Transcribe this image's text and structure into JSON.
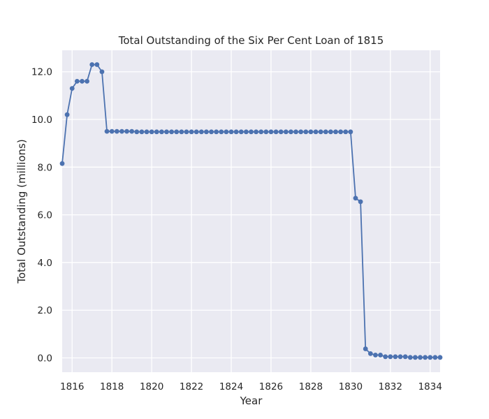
{
  "chart_data": {
    "type": "line",
    "title": "Total Outstanding of the Six Per Cent Loan of 1815",
    "xlabel": "Year",
    "ylabel": "Total Outstanding (millions)",
    "xlim": [
      1815.5,
      1834.5
    ],
    "ylim": [
      -0.6,
      12.9
    ],
    "xticks": [
      "1816",
      "1818",
      "1820",
      "1822",
      "1824",
      "1826",
      "1828",
      "1830",
      "1832",
      "1834"
    ],
    "yticks": [
      "0.0",
      "2.0",
      "4.0",
      "6.0",
      "8.0",
      "10.0",
      "12.0"
    ],
    "grid": true,
    "colors": {
      "line": "#4c72b0",
      "background": "#eaeaf2",
      "grid": "#ffffff"
    },
    "series": [
      {
        "x": [
          1815.5,
          1815.75,
          1816.0,
          1816.25,
          1816.5,
          1816.75,
          1817.0,
          1817.25,
          1817.5,
          1817.75,
          1818.0,
          1818.25,
          1818.5,
          1818.75,
          1819.0,
          1819.25,
          1819.5,
          1819.75,
          1820.0,
          1820.25,
          1820.5,
          1820.75,
          1821.0,
          1821.25,
          1821.5,
          1821.75,
          1822.0,
          1822.25,
          1822.5,
          1822.75,
          1823.0,
          1823.25,
          1823.5,
          1823.75,
          1824.0,
          1824.25,
          1824.5,
          1824.75,
          1825.0,
          1825.25,
          1825.5,
          1825.75,
          1826.0,
          1826.25,
          1826.5,
          1826.75,
          1827.0,
          1827.25,
          1827.5,
          1827.75,
          1828.0,
          1828.25,
          1828.5,
          1828.75,
          1829.0,
          1829.25,
          1829.5,
          1829.75,
          1830.0,
          1830.25,
          1830.5,
          1830.75,
          1831.0,
          1831.25,
          1831.5,
          1831.75,
          1832.0,
          1832.25,
          1832.5,
          1832.75,
          1833.0,
          1833.25,
          1833.5,
          1833.75,
          1834.0,
          1834.25,
          1834.5
        ],
        "values": [
          8.15,
          10.2,
          11.3,
          11.6,
          11.6,
          11.6,
          12.3,
          12.3,
          12.0,
          9.5,
          9.5,
          9.5,
          9.5,
          9.5,
          9.5,
          9.48,
          9.48,
          9.48,
          9.48,
          9.48,
          9.48,
          9.48,
          9.48,
          9.48,
          9.48,
          9.48,
          9.48,
          9.48,
          9.48,
          9.48,
          9.48,
          9.48,
          9.48,
          9.48,
          9.48,
          9.48,
          9.48,
          9.48,
          9.48,
          9.48,
          9.48,
          9.48,
          9.48,
          9.48,
          9.48,
          9.48,
          9.48,
          9.48,
          9.48,
          9.48,
          9.48,
          9.48,
          9.48,
          9.48,
          9.48,
          9.48,
          9.48,
          9.48,
          9.48,
          6.7,
          6.55,
          0.38,
          0.18,
          0.12,
          0.12,
          0.05,
          0.05,
          0.05,
          0.05,
          0.05,
          0.02,
          0.02,
          0.02,
          0.02,
          0.02,
          0.02,
          0.02
        ]
      }
    ]
  }
}
